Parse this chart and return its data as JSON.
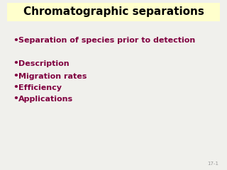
{
  "title": "Chromatographic separations",
  "title_bg_color": "#FFFFCC",
  "title_color": "#000000",
  "title_fontsize": 11,
  "title_fontstyle": "bold",
  "bg_color": "#F0F0EC",
  "bullet_color": "#800040",
  "bullet_fontsize": 8,
  "bullet_fontstyle": "bold",
  "bullet1": "Separation of species prior to detection",
  "bullets_group2": [
    "Description",
    "Migration rates",
    "Efficiency",
    "Applications"
  ],
  "footnote": "17-1",
  "footnote_fontsize": 5,
  "footnote_color": "#999999"
}
